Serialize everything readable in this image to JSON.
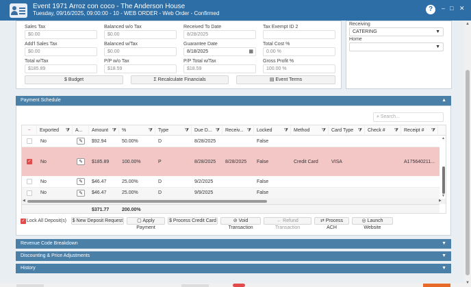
{
  "title_bar": {
    "title": "Event 1971 Arroz con coco - The Anderson House",
    "subtitle": "Tuesday, 09/16/2025, 09:00:00 - 10 - WEB ORDER - Web Order - Confirmed",
    "help": "?",
    "minimize": "–",
    "maximize": "□",
    "close": "✕"
  },
  "financials": {
    "sales_tax": {
      "label": "Sales Tax",
      "value": "$0.00"
    },
    "balanced_wo_tax": {
      "label": "Balanced w/o Tax",
      "value": "$0.00"
    },
    "received_to_date": {
      "label": "Received To Date",
      "value": "8/28/2025"
    },
    "tax_exempt_id2": {
      "label": "Tax Exempt ID 2",
      "value": ""
    },
    "addl_sales_tax": {
      "label": "Add'l Sales Tax",
      "value": "$0.00"
    },
    "balanced_w_tax": {
      "label": "Balanced w/Tax",
      "value": "$0.00"
    },
    "guarantee_date": {
      "label": "Guarantee Date",
      "value": "8/18/2025"
    },
    "total_cost_pct": {
      "label": "Total Cost %",
      "value": "0.00 %"
    },
    "total_w_tax": {
      "label": "Total w/Tax",
      "value": "$185.89"
    },
    "pp_wo_tax": {
      "label": "P/P w/o Tax",
      "value": "$18.59"
    },
    "pp_total_w_tax": {
      "label": "P/P Total w/Tax",
      "value": "$18.59"
    },
    "gross_profit_pct": {
      "label": "Gross Profit %",
      "value": "100.00 %"
    },
    "budget_btn": "$ Budget",
    "recalc_btn": "Σ Recalculate Financials",
    "event_terms_btn": "Event Terms"
  },
  "side": {
    "receiving_label": "Receiving",
    "receiving_value": "CATERING",
    "home_label": "Home",
    "home_value": ""
  },
  "payment_schedule": {
    "header": "Payment Schedule",
    "search_placeholder": "Search...",
    "columns": [
      "Exported",
      "A...",
      "Amount",
      "%",
      "Type",
      "Due D...",
      "Receiv...",
      "Locked",
      "Method",
      "Card Type",
      "Check #",
      "Receipt #"
    ],
    "rows": [
      {
        "exported": "No",
        "amount": "$92.94",
        "pct": "50.00%",
        "type": "D",
        "due": "8/28/2025",
        "received": "",
        "locked": "False",
        "method": "",
        "card_type": "",
        "check": "",
        "receipt": "",
        "selected": false
      },
      {
        "exported": "No",
        "amount": "$185.89",
        "pct": "100.00%",
        "type": "P",
        "due": "8/28/2025",
        "received": "8/28/2025",
        "locked": "False",
        "method": "Credit Card",
        "card_type": "VISA",
        "check": "",
        "receipt": "A175640211...",
        "selected": true
      },
      {
        "exported": "No",
        "amount": "$46.47",
        "pct": "25.00%",
        "type": "D",
        "due": "9/2/2025",
        "received": "",
        "locked": "False",
        "method": "",
        "card_type": "",
        "check": "",
        "receipt": "",
        "selected": false
      },
      {
        "exported": "No",
        "amount": "$46.47",
        "pct": "25.00%",
        "type": "D",
        "due": "9/9/2025",
        "received": "",
        "locked": "False",
        "method": "",
        "card_type": "",
        "check": "",
        "receipt": "",
        "selected": false
      }
    ],
    "totals": {
      "amount": "$371.77",
      "pct": "200.00%"
    },
    "lock_all_label": "Lock All Deposit(s)",
    "actions": [
      "$ New Deposit Request",
      "Apply Payment",
      "$ Process Credit Card",
      "⊘ Void Transaction",
      "← Refund Transaction",
      "Process ACH",
      "Launch Website"
    ]
  },
  "sections": [
    "Revenue Code Breakdown",
    "Discounting & Price Adjustments",
    "History"
  ],
  "colors": {
    "title_bar": "#2d6ea6",
    "section_header": "#4a7fa8",
    "selected_row": "#f4c7c7"
  }
}
